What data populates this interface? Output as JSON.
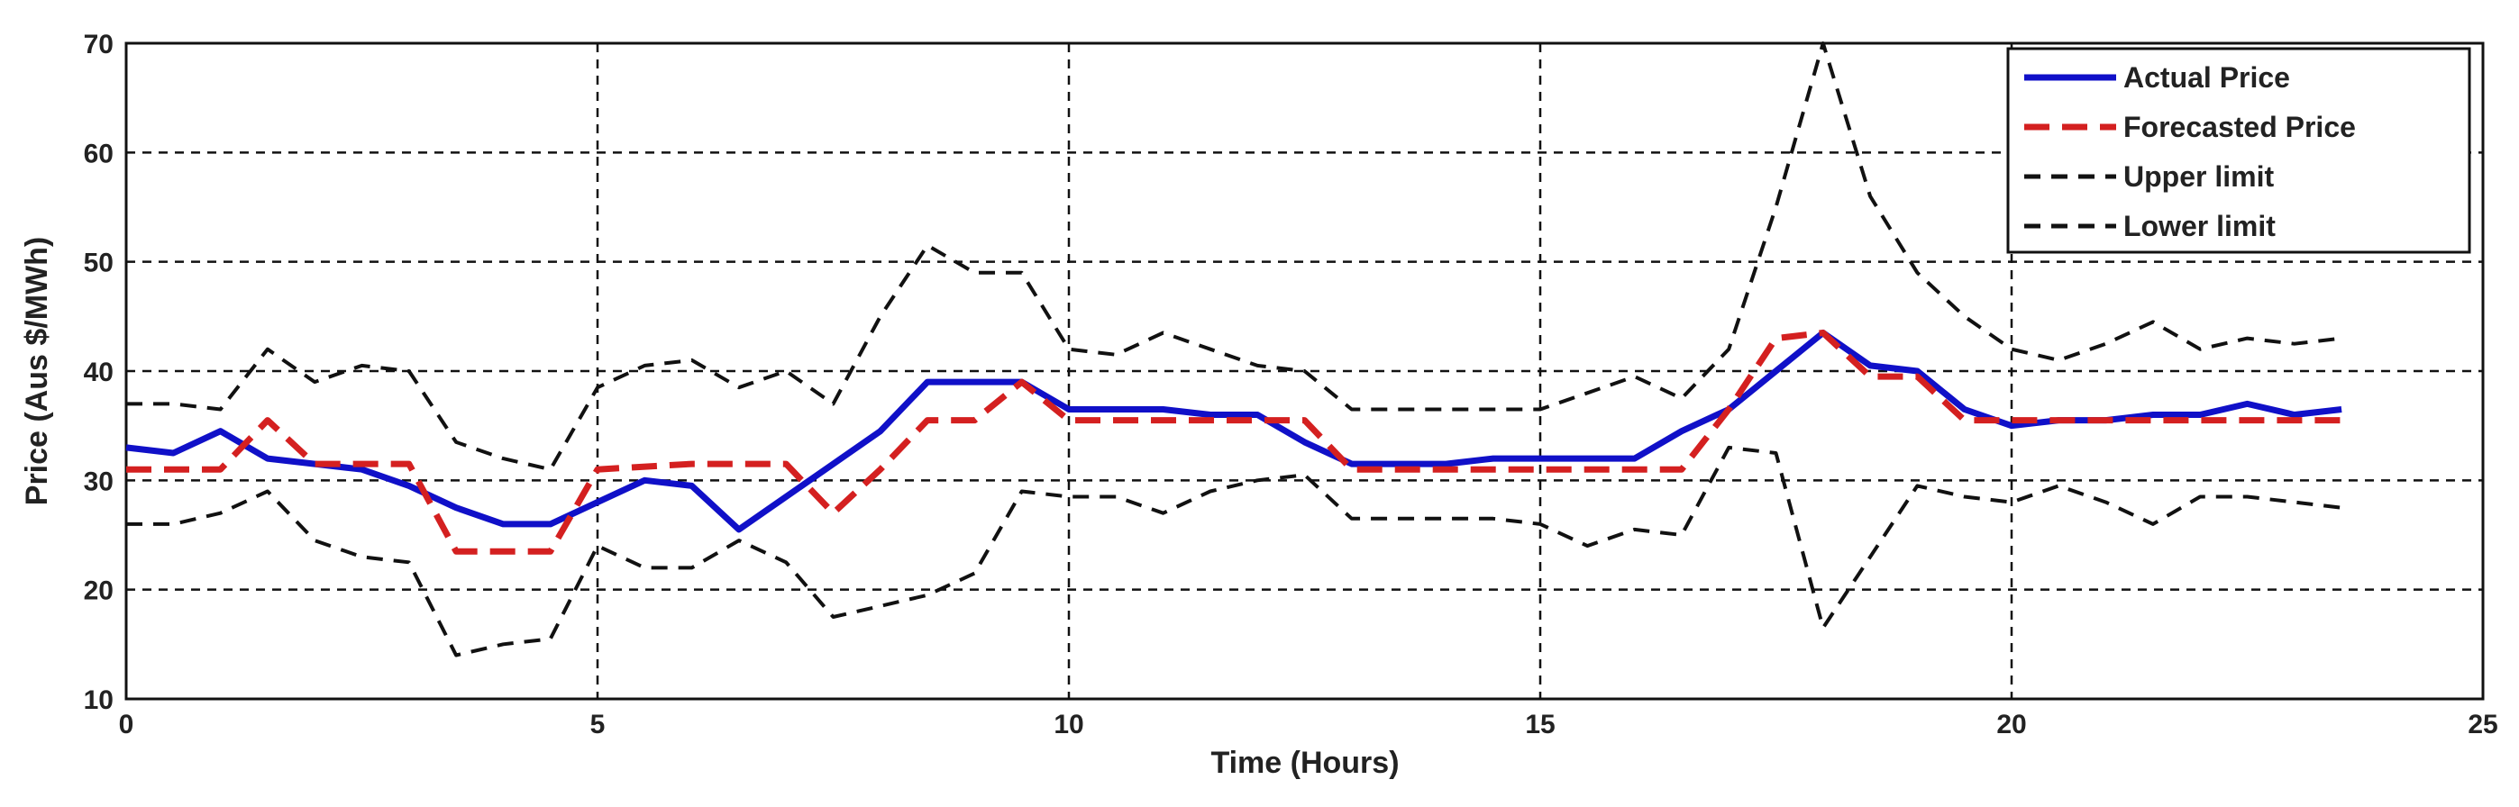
{
  "chart_data": {
    "type": "line",
    "title": "",
    "xlabel": "Time (Hours)",
    "ylabel": "Price (Aus $/MWh)",
    "xlim": [
      0,
      25
    ],
    "ylim": [
      10,
      70
    ],
    "xticks": [
      "0",
      "5",
      "10",
      "15",
      "20",
      "25"
    ],
    "yticks": [
      "10",
      "20",
      "30",
      "40",
      "50",
      "60",
      "70"
    ],
    "grid": true,
    "legend_position": "top-right",
    "series": [
      {
        "name": "Actual Price",
        "color": "#1010c8",
        "dash": "solid",
        "points": [
          [
            0,
            33
          ],
          [
            0.5,
            32.5
          ],
          [
            1,
            34.5
          ],
          [
            1.5,
            32
          ],
          [
            2,
            31.5
          ],
          [
            2.5,
            31
          ],
          [
            3,
            29.5
          ],
          [
            3.5,
            27.5
          ],
          [
            4,
            26
          ],
          [
            4.5,
            26
          ],
          [
            5,
            28
          ],
          [
            5.5,
            30
          ],
          [
            6,
            29.5
          ],
          [
            6.5,
            25.5
          ],
          [
            7,
            28.5
          ],
          [
            7.5,
            31.5
          ],
          [
            8,
            34.5
          ],
          [
            8.5,
            39
          ],
          [
            9,
            39
          ],
          [
            9.5,
            39
          ],
          [
            10,
            36.5
          ],
          [
            10.5,
            36.5
          ],
          [
            11,
            36.5
          ],
          [
            11.5,
            36
          ],
          [
            12,
            36
          ],
          [
            12.5,
            33.5
          ],
          [
            13,
            31.5
          ],
          [
            13.5,
            31.5
          ],
          [
            14,
            31.5
          ],
          [
            14.5,
            32
          ],
          [
            15,
            32
          ],
          [
            15.5,
            32
          ],
          [
            16,
            32
          ],
          [
            16.5,
            34.5
          ],
          [
            17,
            36.5
          ],
          [
            17.5,
            40
          ],
          [
            18,
            43.5
          ],
          [
            18.5,
            40.5
          ],
          [
            19,
            40
          ],
          [
            19.5,
            36.5
          ],
          [
            20,
            35
          ],
          [
            20.5,
            35.5
          ],
          [
            21,
            35.5
          ],
          [
            21.5,
            36
          ],
          [
            22,
            36
          ],
          [
            22.5,
            37
          ],
          [
            23,
            36
          ],
          [
            23.5,
            36.5
          ]
        ]
      },
      {
        "name": "Forecasted Price",
        "color": "#d42020",
        "dash": "dashed",
        "points": [
          [
            0,
            31
          ],
          [
            1,
            31
          ],
          [
            1.5,
            35.5
          ],
          [
            2,
            31.5
          ],
          [
            3,
            31.5
          ],
          [
            3.5,
            23.5
          ],
          [
            4.5,
            23.5
          ],
          [
            5,
            31
          ],
          [
            6,
            31.5
          ],
          [
            7,
            31.5
          ],
          [
            7.5,
            27
          ],
          [
            8,
            31
          ],
          [
            8.5,
            35.5
          ],
          [
            9,
            35.5
          ],
          [
            9.5,
            39
          ],
          [
            10,
            35.5
          ],
          [
            12.5,
            35.5
          ],
          [
            13,
            31
          ],
          [
            16.5,
            31
          ],
          [
            17,
            36.5
          ],
          [
            17.5,
            43
          ],
          [
            18,
            43.5
          ],
          [
            18.5,
            39.5
          ],
          [
            19,
            39.5
          ],
          [
            19.5,
            35.5
          ],
          [
            23.5,
            35.5
          ]
        ]
      },
      {
        "name": "Upper limit",
        "color": "#111111",
        "dash": "dashed",
        "points": [
          [
            0,
            37
          ],
          [
            0.5,
            37
          ],
          [
            1,
            36.5
          ],
          [
            1.5,
            42
          ],
          [
            2,
            39
          ],
          [
            2.5,
            40.5
          ],
          [
            3,
            40
          ],
          [
            3.5,
            33.5
          ],
          [
            4,
            32
          ],
          [
            4.5,
            31
          ],
          [
            5,
            38.5
          ],
          [
            5.5,
            40.5
          ],
          [
            6,
            41
          ],
          [
            6.5,
            38.5
          ],
          [
            7,
            40
          ],
          [
            7.5,
            37
          ],
          [
            8,
            45
          ],
          [
            8.5,
            51.5
          ],
          [
            9,
            49
          ],
          [
            9.5,
            49
          ],
          [
            10,
            42
          ],
          [
            10.5,
            41.5
          ],
          [
            11,
            43.5
          ],
          [
            11.5,
            42
          ],
          [
            12,
            40.5
          ],
          [
            12.5,
            40
          ],
          [
            13,
            36.5
          ],
          [
            13.5,
            36.5
          ],
          [
            14,
            36.5
          ],
          [
            14.5,
            36.5
          ],
          [
            15,
            36.5
          ],
          [
            15.5,
            38
          ],
          [
            16,
            39.5
          ],
          [
            16.5,
            37.5
          ],
          [
            17,
            42
          ],
          [
            17.5,
            55
          ],
          [
            18,
            70
          ],
          [
            18.5,
            56
          ],
          [
            19,
            49
          ],
          [
            19.5,
            45
          ],
          [
            20,
            42
          ],
          [
            20.5,
            41
          ],
          [
            21,
            42.5
          ],
          [
            21.5,
            44.5
          ],
          [
            22,
            42
          ],
          [
            22.5,
            43
          ],
          [
            23,
            42.5
          ],
          [
            23.5,
            43
          ]
        ]
      },
      {
        "name": "Lower limit",
        "color": "#111111",
        "dash": "dashed",
        "points": [
          [
            0,
            26
          ],
          [
            0.5,
            26
          ],
          [
            1,
            27
          ],
          [
            1.5,
            29
          ],
          [
            2,
            24.5
          ],
          [
            2.5,
            23
          ],
          [
            3,
            22.5
          ],
          [
            3.5,
            14
          ],
          [
            4,
            15
          ],
          [
            4.5,
            15.5
          ],
          [
            5,
            24
          ],
          [
            5.5,
            22
          ],
          [
            6,
            22
          ],
          [
            6.5,
            24.5
          ],
          [
            7,
            22.5
          ],
          [
            7.5,
            17.5
          ],
          [
            8,
            18.5
          ],
          [
            8.5,
            19.5
          ],
          [
            9,
            21.5
          ],
          [
            9.5,
            29
          ],
          [
            10,
            28.5
          ],
          [
            10.5,
            28.5
          ],
          [
            11,
            27
          ],
          [
            11.5,
            29
          ],
          [
            12,
            30
          ],
          [
            12.5,
            30.5
          ],
          [
            13,
            26.5
          ],
          [
            13.5,
            26.5
          ],
          [
            14,
            26.5
          ],
          [
            14.5,
            26.5
          ],
          [
            15,
            26
          ],
          [
            15.5,
            24
          ],
          [
            16,
            25.5
          ],
          [
            16.5,
            25
          ],
          [
            17,
            33
          ],
          [
            17.5,
            32.5
          ],
          [
            18,
            16.5
          ],
          [
            18.5,
            23
          ],
          [
            19,
            29.5
          ],
          [
            19.5,
            28.5
          ],
          [
            20,
            28
          ],
          [
            20.5,
            29.5
          ],
          [
            21,
            28
          ],
          [
            21.5,
            26
          ],
          [
            22,
            28.5
          ],
          [
            22.5,
            28.5
          ],
          [
            23,
            28
          ],
          [
            23.5,
            27.5
          ]
        ]
      }
    ]
  }
}
